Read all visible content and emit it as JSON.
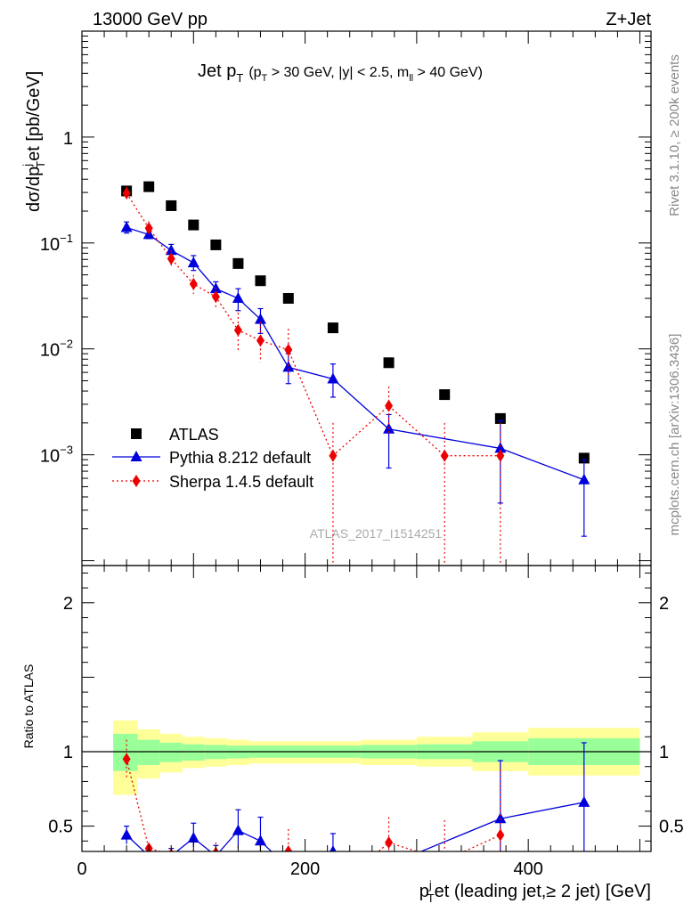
{
  "header": {
    "left": "13000 GeV pp",
    "right": "Z+Jet"
  },
  "plot_title": {
    "main": "Jet p",
    "main_sub": "T",
    "cuts_a": "(p",
    "cuts_a_sub": "T",
    "cuts_b": " > 30 GeV, |y| < 2.5, m",
    "cuts_b_sub": "ll",
    "cuts_c": " > 40 GeV)"
  },
  "side_labels": {
    "rivet": "Rivet 3.1.10, ≥ 200k events",
    "mcplots": "mcplots.cern.ch [arXiv:1306.3436]"
  },
  "analysis_id": "ATLAS_2017_I1514251",
  "axes": {
    "ylabel_main": "dσ/dp",
    "ylabel_main_sup": "j",
    "ylabel_main_sub": "T",
    "ylabel_main_rest": "et [pb/GeV]",
    "ylabel_ratio": "Ratio to ATLAS",
    "xlabel": "p",
    "xlabel_sup": "j",
    "xlabel_sub": "T",
    "xlabel_rest": "et (leading jet,≥ 2 jet) [GeV]"
  },
  "chart_data": [
    {
      "type": "scatter",
      "panel": "main",
      "xlim": [
        0,
        510
      ],
      "ylim": [
        9e-05,
        10
      ],
      "log_y": true,
      "x_ticks": [
        0,
        200,
        400
      ],
      "y_ticks": [
        {
          "value": 0.001,
          "label": "10",
          "exp": "−3"
        },
        {
          "value": 0.01,
          "label": "10",
          "exp": "−2"
        },
        {
          "value": 0.1,
          "label": "10",
          "exp": "−1"
        },
        {
          "value": 1,
          "label": "1",
          "exp": ""
        }
      ],
      "legend": {
        "placement": "lower-left"
      },
      "series": [
        {
          "name": "ATLAS",
          "style": "marker-square",
          "color": "#000000",
          "x": [
            40,
            60,
            80,
            100,
            120,
            140,
            160,
            185,
            225,
            275,
            325,
            375,
            450
          ],
          "y": [
            0.31,
            0.34,
            0.225,
            0.148,
            0.096,
            0.064,
            0.044,
            0.03,
            0.0158,
            0.0074,
            0.0037,
            0.0022,
            0.00093
          ]
        },
        {
          "name": "Pythia 8.212 default",
          "style": "line-solid-triangle",
          "color": "#0000dd",
          "x": [
            40,
            60,
            80,
            100,
            120,
            140,
            160,
            185,
            225,
            275,
            375,
            450
          ],
          "y": [
            0.14,
            0.12,
            0.085,
            0.065,
            0.037,
            0.03,
            0.019,
            0.0067,
            0.0052,
            0.00175,
            0.00115,
            0.00058
          ],
          "err_lo": [
            0.124,
            0.11,
            0.074,
            0.055,
            0.031,
            0.023,
            0.014,
            0.0047,
            0.0035,
            0.00075,
            0.00035,
            0.00017
          ],
          "err_hi": [
            0.158,
            0.131,
            0.097,
            0.076,
            0.043,
            0.037,
            0.024,
            0.009,
            0.0072,
            0.0024,
            0.0021,
            0.0009
          ]
        },
        {
          "name": "Sherpa 1.4.5 default",
          "style": "line-dotted-diamond",
          "color": "#ee0000",
          "x": [
            40,
            60,
            80,
            100,
            120,
            140,
            160,
            185,
            225,
            275,
            325,
            375
          ],
          "y": [
            0.295,
            0.138,
            0.071,
            0.041,
            0.031,
            0.015,
            0.012,
            0.0098,
            0.00098,
            0.0029,
            0.00098,
            0.00098
          ],
          "err_lo": [
            0.255,
            0.119,
            0.06,
            0.033,
            0.024,
            0.0095,
            0.0075,
            0.0055,
            1e-05,
            0.0016,
            1e-05,
            1e-05
          ],
          "err_hi": [
            0.34,
            0.16,
            0.085,
            0.05,
            0.038,
            0.022,
            0.018,
            0.0155,
            0.002,
            0.0044,
            0.002,
            0.002
          ]
        }
      ]
    },
    {
      "type": "line",
      "panel": "ratio",
      "xlim": [
        0,
        510
      ],
      "ylim": [
        0.33,
        2.25
      ],
      "x_ticks": [
        0,
        200,
        400
      ],
      "y_ticks": [
        0.5,
        1,
        2
      ],
      "bands": {
        "edges": [
          28,
          50,
          70,
          90,
          110,
          130,
          150,
          170,
          200,
          250,
          300,
          350,
          400,
          500
        ],
        "yellow_lo": [
          0.71,
          0.82,
          0.86,
          0.89,
          0.9,
          0.91,
          0.92,
          0.92,
          0.92,
          0.91,
          0.9,
          0.87,
          0.84
        ],
        "yellow_hi": [
          1.21,
          1.15,
          1.12,
          1.1,
          1.09,
          1.08,
          1.07,
          1.07,
          1.07,
          1.08,
          1.1,
          1.13,
          1.16
        ],
        "green_lo": [
          0.87,
          0.91,
          0.93,
          0.94,
          0.95,
          0.955,
          0.96,
          0.96,
          0.96,
          0.955,
          0.95,
          0.93,
          0.91
        ],
        "green_hi": [
          1.12,
          1.08,
          1.06,
          1.05,
          1.045,
          1.04,
          1.04,
          1.04,
          1.04,
          1.045,
          1.05,
          1.07,
          1.09
        ],
        "colors": {
          "yellow": "#ffff99",
          "green": "#99ff99"
        }
      },
      "series": [
        {
          "name": "Pythia 8.212 default",
          "color": "#0000dd",
          "x": [
            40,
            60,
            80,
            100,
            120,
            140,
            160,
            185,
            225,
            275,
            375,
            450
          ],
          "y": [
            0.44,
            0.3,
            0.3,
            0.42,
            0.3,
            0.47,
            0.4,
            0.22,
            0.33,
            0.24,
            0.55,
            0.66
          ],
          "err_lo": [
            0.38,
            0.26,
            0.25,
            0.36,
            0.24,
            0.35,
            0.3,
            0.16,
            0.22,
            0.1,
            0.16,
            0.18
          ],
          "err_hi": [
            0.5,
            0.34,
            0.35,
            0.52,
            0.37,
            0.61,
            0.56,
            0.3,
            0.45,
            0.33,
            0.94,
            1.06
          ]
        },
        {
          "name": "Sherpa 1.4.5 default",
          "color": "#ee0000",
          "x": [
            40,
            60,
            80,
            100,
            120,
            140,
            160,
            185,
            225,
            275,
            325,
            375
          ],
          "y": [
            0.95,
            0.35,
            0.31,
            0.28,
            0.32,
            0.23,
            0.27,
            0.33,
            0.06,
            0.39,
            0.27,
            0.44
          ],
          "err_lo": [
            0.82,
            0.33,
            0.27,
            0.22,
            0.25,
            0.15,
            0.17,
            0.18,
            0.0,
            0.22,
            0.0,
            0.0
          ],
          "err_hi": [
            1.08,
            0.37,
            0.35,
            0.34,
            0.39,
            0.31,
            0.37,
            0.48,
            0.12,
            0.56,
            0.54,
            0.88
          ]
        }
      ]
    }
  ]
}
